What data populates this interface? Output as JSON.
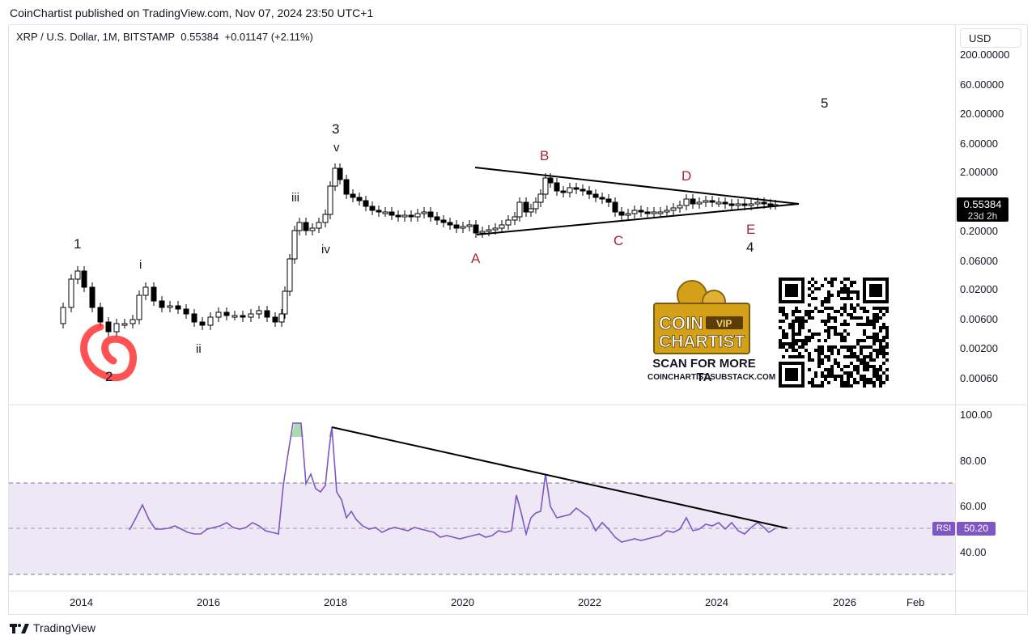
{
  "header": {
    "published_line": "CoinChartist published on TradingView.com, Nov 07, 2024 23:50 UTC+1",
    "symbol_line": "XRP / U.S. Dollar, 1M, BITSTAMP",
    "last_price": "0.55384",
    "change": "+0.01147 (+2.11%)",
    "currency_button": "USD"
  },
  "price_axis": {
    "labels": [
      "200.00000",
      "60.00000",
      "20.00000",
      "6.00000",
      "2.00000",
      "0.20000",
      "0.06000",
      "0.02000",
      "0.00600",
      "0.00200",
      "0.00060"
    ],
    "scale": "log"
  },
  "current_price": {
    "value": "0.55384",
    "countdown": "23d 2h"
  },
  "time_axis": {
    "labels": [
      "2014",
      "2016",
      "2018",
      "2020",
      "2022",
      "2024",
      "2026",
      "Feb"
    ]
  },
  "rsi": {
    "name": "RSI",
    "value": "50.20",
    "axis_labels": [
      "100.00",
      "80.00",
      "60.00",
      "40.00"
    ],
    "band_upper": 70,
    "band_lower": 30,
    "colors": {
      "line": "#7e57c2",
      "band": "#ede7f6",
      "overbought_fill": "#66bb6a"
    }
  },
  "wave_labels": {
    "w1": "1",
    "w2": "2",
    "w3": "3",
    "w4": "4",
    "w5": "5",
    "sub_i": "i",
    "sub_ii": "ii",
    "sub_iii": "iii",
    "sub_iv": "iv",
    "sub_v": "v",
    "tri_A": "A",
    "tri_B": "B",
    "tri_C": "C",
    "tri_D": "D",
    "tri_E": "E",
    "label_color": "#b22234"
  },
  "promo": {
    "logo_line1": "COIN",
    "logo_tag": "VIP",
    "logo_line2": "CHARTIST",
    "cta": "SCAN FOR MORE TA",
    "url": "COINCHARTIST.SUBSTACK.COM"
  },
  "footer": {
    "brand": "TradingView"
  }
}
